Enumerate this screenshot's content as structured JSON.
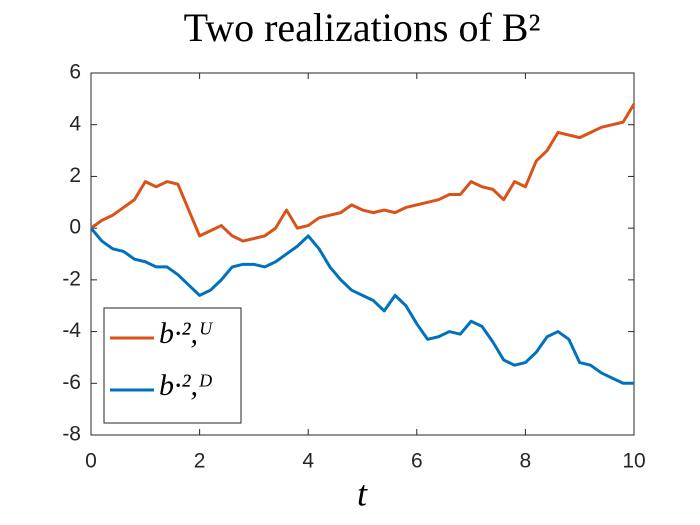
{
  "chart_data": {
    "type": "line",
    "title": "Two realizations of B²",
    "xlabel": "t",
    "x": [
      0,
      0.2,
      0.4,
      0.6,
      0.8,
      1,
      1.2,
      1.4,
      1.6,
      1.8,
      2,
      2.2,
      2.4,
      2.6,
      2.8,
      3,
      3.2,
      3.4,
      3.6,
      3.8,
      4,
      4.2,
      4.4,
      4.6,
      4.8,
      5,
      5.2,
      5.4,
      5.6,
      5.8,
      6,
      6.2,
      6.4,
      6.6,
      6.8,
      7,
      7.2,
      7.4,
      7.6,
      7.8,
      8,
      8.2,
      8.4,
      8.6,
      8.8,
      9,
      9.2,
      9.4,
      9.6,
      9.8,
      10
    ],
    "series": [
      {
        "name": "b·²,ᵁ",
        "color": "#d95319",
        "values": [
          0,
          0.3,
          0.5,
          0.8,
          1.1,
          1.8,
          1.6,
          1.8,
          1.7,
          0.7,
          -0.3,
          -0.1,
          0.1,
          -0.3,
          -0.5,
          -0.4,
          -0.3,
          0,
          0.7,
          0,
          0.1,
          0.4,
          0.5,
          0.6,
          0.9,
          0.7,
          0.6,
          0.7,
          0.6,
          0.8,
          0.9,
          1,
          1.1,
          1.3,
          1.3,
          1.8,
          1.6,
          1.5,
          1.1,
          1.8,
          1.6,
          2.6,
          3,
          3.7,
          3.6,
          3.5,
          3.7,
          3.9,
          4,
          4.1,
          4.8
        ]
      },
      {
        "name": "b·²,ᴰ",
        "color": "#0072bd",
        "values": [
          0,
          -0.5,
          -0.8,
          -0.9,
          -1.2,
          -1.3,
          -1.5,
          -1.5,
          -1.8,
          -2.2,
          -2.6,
          -2.4,
          -2,
          -1.5,
          -1.4,
          -1.4,
          -1.5,
          -1.3,
          -1,
          -0.7,
          -0.3,
          -0.8,
          -1.5,
          -2,
          -2.4,
          -2.6,
          -2.8,
          -3.2,
          -2.6,
          -3,
          -3.7,
          -4.3,
          -4.2,
          -4,
          -4.1,
          -3.6,
          -3.8,
          -4.4,
          -5.1,
          -5.3,
          -5.2,
          -4.8,
          -4.2,
          -4,
          -4.3,
          -5.2,
          -5.3,
          -5.6,
          -5.8,
          -6,
          -6
        ]
      }
    ],
    "xlim": [
      0,
      10
    ],
    "xticks": [
      0,
      2,
      4,
      6,
      8,
      10
    ],
    "ylim": [
      -8,
      6
    ],
    "yticks": [
      -8,
      -6,
      -4,
      -2,
      0,
      2,
      4,
      6
    ],
    "grid": false,
    "legend": "southwest"
  }
}
